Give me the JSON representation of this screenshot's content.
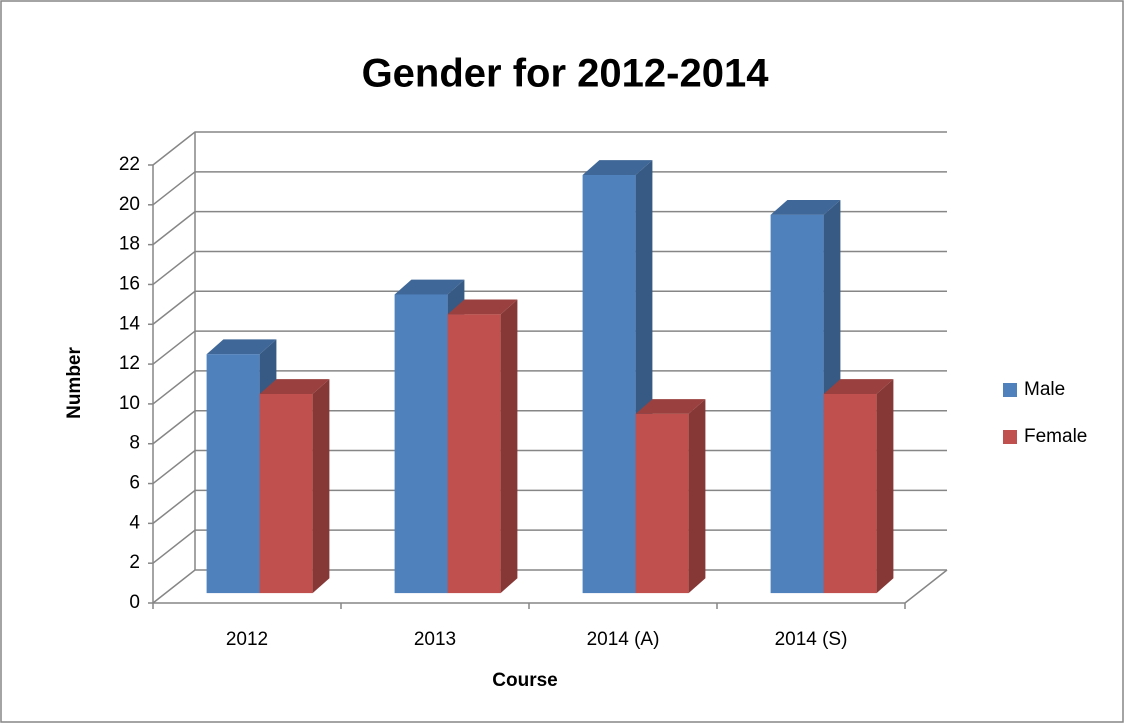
{
  "chart_data": {
    "type": "bar3d",
    "title": "Gender for 2012-2014",
    "x_label": "Course",
    "y_label": "Number",
    "categories": [
      "2012",
      "2013",
      "2014 (A)",
      "2014 (S)"
    ],
    "series": [
      {
        "name": "Male",
        "color": "#4f81bd",
        "values": [
          12,
          15,
          21,
          19
        ]
      },
      {
        "name": "Female",
        "color": "#c0504d",
        "values": [
          10,
          14,
          9,
          10
        ]
      }
    ],
    "ylim": [
      0,
      22
    ],
    "yticks": [
      0,
      2,
      4,
      6,
      8,
      10,
      12,
      14,
      16,
      18,
      20,
      22
    ],
    "grid": true,
    "legend": "right"
  }
}
